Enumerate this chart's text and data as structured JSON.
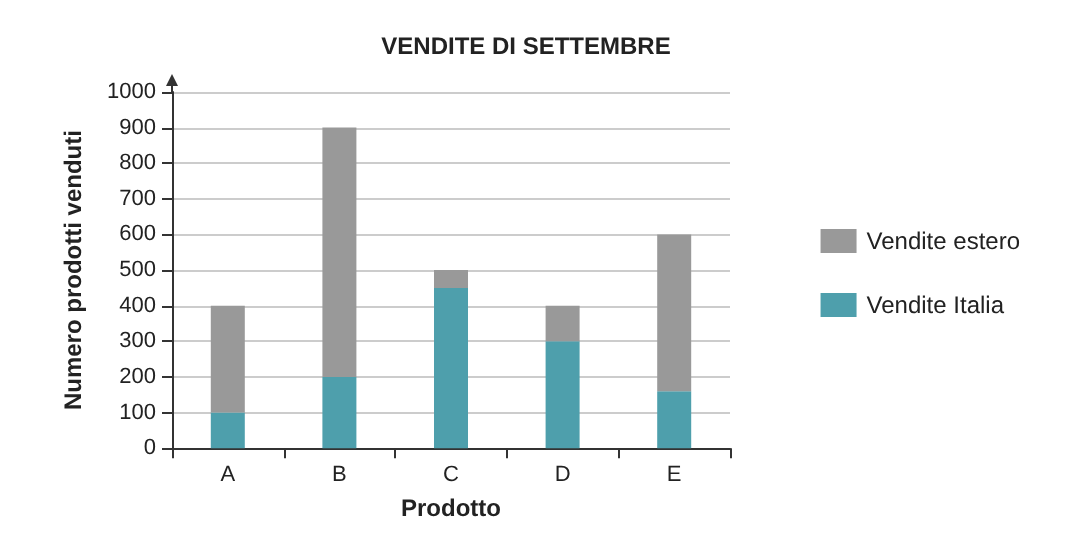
{
  "chart_data": {
    "type": "bar",
    "title": "VENDITE DI SETTEMBRE",
    "xlabel": "Prodotto",
    "ylabel": "Numero prodotti venduti",
    "categories": [
      "A",
      "B",
      "C",
      "D",
      "E"
    ],
    "stacked": true,
    "series": [
      {
        "name": "Vendite Italia",
        "color": "#4e9fac",
        "values": [
          100,
          200,
          450,
          300,
          160
        ]
      },
      {
        "name": "Vendite estero",
        "color": "#999999",
        "values": [
          300,
          700,
          50,
          100,
          440
        ]
      }
    ],
    "ylim": [
      0,
      1000
    ],
    "yticks": [
      0,
      100,
      200,
      300,
      400,
      500,
      600,
      700,
      800,
      900,
      1000
    ],
    "grid": "y",
    "legend": "right"
  }
}
